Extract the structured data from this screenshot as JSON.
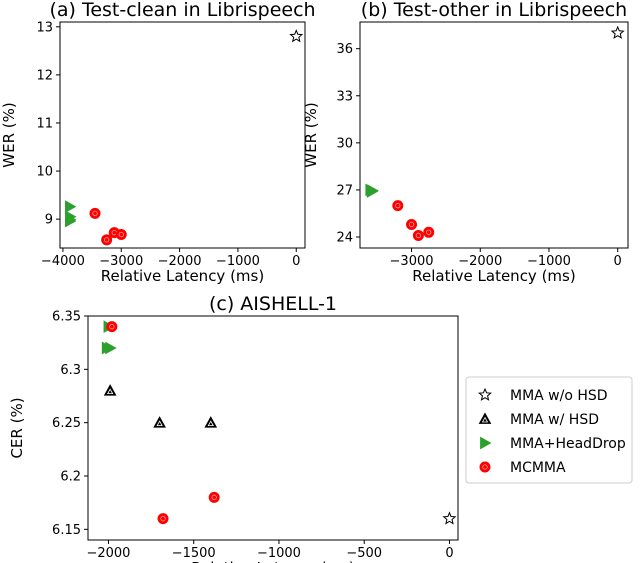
{
  "chart_data": [
    {
      "type": "scatter",
      "title": "(a) Test-clean in Librispeech",
      "xlabel": "Relative Latency (ms)",
      "ylabel": "WER (%)",
      "xlim": [
        -4050,
        150
      ],
      "ylim": [
        8.4,
        13.1
      ],
      "xticks": [
        -4000,
        -3000,
        -2000,
        -1000,
        0
      ],
      "yticks": [
        9,
        10,
        11,
        12,
        13
      ],
      "series": [
        {
          "name": "MMA w/o HSD",
          "marker": "star",
          "color": "#ffffff",
          "points": [
            [
              0,
              12.8
            ]
          ]
        },
        {
          "name": "MMA+HeadDrop",
          "marker": "triangle-right",
          "color": "#2ca02c",
          "points": [
            [
              -3880,
              9.26
            ],
            [
              -3880,
              9.05
            ],
            [
              -3880,
              8.99
            ],
            [
              -3880,
              8.96
            ]
          ]
        },
        {
          "name": "MCMMA",
          "marker": "circle",
          "color": "#ff0000",
          "points": [
            [
              -3450,
              9.12
            ],
            [
              -3250,
              8.57
            ],
            [
              -3120,
              8.72
            ],
            [
              -3000,
              8.68
            ]
          ]
        }
      ]
    },
    {
      "type": "scatter",
      "title": "(b) Test-other in Librispeech",
      "xlabel": "Relative Latency (ms)",
      "ylabel": "WER (%)",
      "xlim": [
        -3750,
        150
      ],
      "ylim": [
        23.3,
        37.7
      ],
      "xticks": [
        -3000,
        -2000,
        -1000,
        0
      ],
      "yticks": [
        24,
        27,
        30,
        33,
        36
      ],
      "series": [
        {
          "name": "MMA w/o HSD",
          "marker": "star",
          "color": "#ffffff",
          "points": [
            [
              0,
              37.0
            ]
          ]
        },
        {
          "name": "MMA+HeadDrop",
          "marker": "triangle-right",
          "color": "#2ca02c",
          "points": [
            [
              -3600,
              27.0
            ],
            [
              -3580,
              26.9
            ],
            [
              -3570,
              26.95
            ]
          ]
        },
        {
          "name": "MCMMA",
          "marker": "circle",
          "color": "#ff0000",
          "points": [
            [
              -3200,
              26.0
            ],
            [
              -3000,
              24.8
            ],
            [
              -2900,
              24.1
            ],
            [
              -2750,
              24.3
            ]
          ]
        }
      ]
    },
    {
      "type": "scatter",
      "title": "(c) AISHELL-1",
      "xlabel": "Relative Latency (ms)",
      "ylabel": "CER (%)",
      "xlim": [
        -2120,
        50
      ],
      "ylim": [
        6.14,
        6.35
      ],
      "xticks": [
        -2000,
        -1500,
        -1000,
        -500,
        0
      ],
      "yticks": [
        6.15,
        6.2,
        6.25,
        6.3,
        6.35
      ],
      "legend": "right-outside",
      "series": [
        {
          "name": "MMA w/o HSD",
          "marker": "star",
          "color": "#ffffff",
          "points": [
            [
              0,
              6.16
            ]
          ]
        },
        {
          "name": "MMA w/ HSD",
          "marker": "triangle-up",
          "color": "#000000",
          "points": [
            [
              -1990,
              6.28
            ],
            [
              -1700,
              6.25
            ],
            [
              -1400,
              6.25
            ]
          ]
        },
        {
          "name": "MMA+HeadDrop",
          "marker": "triangle-right",
          "color": "#2ca02c",
          "points": [
            [
              -2000,
              6.34
            ],
            [
              -2010,
              6.32
            ],
            [
              -1990,
              6.32
            ]
          ]
        },
        {
          "name": "MCMMA",
          "marker": "circle",
          "color": "#ff0000",
          "points": [
            [
              -1980,
              6.34
            ],
            [
              -1680,
              6.16
            ],
            [
              -1380,
              6.18
            ]
          ]
        }
      ]
    }
  ],
  "legend": {
    "items": [
      {
        "label": "MMA w/o HSD",
        "marker": "star",
        "color": "#ffffff"
      },
      {
        "label": "MMA w/ HSD",
        "marker": "triangle-up",
        "color": "#000000"
      },
      {
        "label": "MMA+HeadDrop",
        "marker": "triangle-right",
        "color": "#2ca02c"
      },
      {
        "label": "MCMMA",
        "marker": "circle",
        "color": "#ff0000"
      }
    ]
  }
}
